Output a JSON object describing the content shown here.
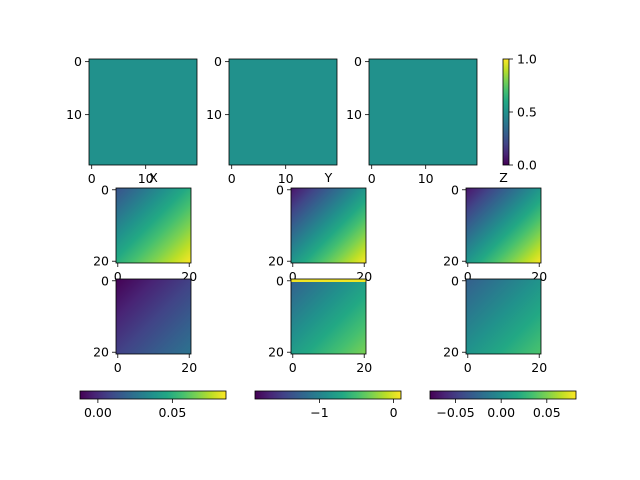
{
  "colors": {
    "viridis": [
      "#440154",
      "#482475",
      "#414487",
      "#355f8d",
      "#2a788e",
      "#21918c",
      "#22a884",
      "#44bf70",
      "#7ad151",
      "#bddf26",
      "#fde725"
    ],
    "uniform_fill": "#21918c"
  },
  "chart_data": [
    {
      "type": "heatmap",
      "panel": "row1-col1",
      "xticks": [
        "0",
        "10"
      ],
      "yticks": [
        "0",
        "10"
      ],
      "xlim": [
        0,
        20
      ],
      "ylim": [
        20,
        0
      ],
      "value": 0.5,
      "colorbar": {
        "ticks": [
          "0.0",
          "0.5",
          "1.0"
        ],
        "range": [
          0,
          1
        ],
        "orientation": "vertical"
      }
    },
    {
      "type": "heatmap",
      "panel": "row1-col2",
      "xticks": [
        "0",
        "10"
      ],
      "yticks": [
        "0",
        "10"
      ],
      "xlim": [
        0,
        20
      ],
      "ylim": [
        20,
        0
      ],
      "value": 0.5
    },
    {
      "type": "heatmap",
      "panel": "row1-col3",
      "xticks": [
        "0",
        "10"
      ],
      "yticks": [
        "0",
        "10"
      ],
      "xlim": [
        0,
        20
      ],
      "ylim": [
        20,
        0
      ],
      "value": 0.5
    },
    {
      "type": "heatmap",
      "panel": "row2-col1",
      "title": "X",
      "xticks": [
        "0",
        "20"
      ],
      "yticks": [
        "0",
        "20"
      ],
      "xlim": [
        0,
        21
      ],
      "ylim": [
        21,
        0
      ],
      "gradient": {
        "max_corner": "top-left",
        "min_corner": "bottom-right",
        "range_frac": [
          0.25,
          1.0
        ]
      }
    },
    {
      "type": "heatmap",
      "panel": "row2-col2",
      "title": "Y",
      "xticks": [
        "0",
        "20"
      ],
      "yticks": [
        "0",
        "20"
      ],
      "xlim": [
        0,
        21
      ],
      "ylim": [
        21,
        0
      ],
      "gradient": {
        "max_corner": "top-left",
        "min_corner": "bottom-right",
        "range_frac": [
          0.05,
          1.0
        ]
      }
    },
    {
      "type": "heatmap",
      "panel": "row2-col3",
      "title": "Z",
      "xticks": [
        "0",
        "20"
      ],
      "yticks": [
        "0",
        "20"
      ],
      "xlim": [
        0,
        21
      ],
      "ylim": [
        21,
        0
      ],
      "gradient": {
        "max_corner": "top-left",
        "min_corner": "bottom-right",
        "range_frac": [
          0.05,
          1.0
        ]
      }
    },
    {
      "type": "heatmap",
      "panel": "row3-col1",
      "xticks": [
        "0",
        "20"
      ],
      "yticks": [
        "0",
        "20"
      ],
      "xlim": [
        0,
        21
      ],
      "ylim": [
        21,
        0
      ],
      "gradient": {
        "max_corner": "top-left",
        "min_corner": "bottom-right",
        "range_frac": [
          0.0,
          0.38
        ]
      },
      "colorbar": {
        "ticks": [
          {
            "label": "0.00",
            "value": 0.0
          },
          {
            "label": "0.05",
            "value": 0.05
          }
        ],
        "range": [
          -0.012,
          0.086
        ],
        "orientation": "horizontal"
      }
    },
    {
      "type": "heatmap",
      "panel": "row3-col2",
      "xticks": [
        "0",
        "20"
      ],
      "yticks": [
        "0",
        "20"
      ],
      "xlim": [
        0,
        21
      ],
      "ylim": [
        21,
        0
      ],
      "gradient": {
        "max_corner": "top-left",
        "min_corner": "bottom-right",
        "range_frac": [
          0.3,
          0.8
        ]
      },
      "top_edge_frac": 0.98,
      "colorbar": {
        "ticks": [
          {
            "label": "−1",
            "value": -1
          },
          {
            "label": "0",
            "value": 0
          }
        ],
        "range": [
          -1.87,
          0.1
        ],
        "orientation": "horizontal"
      }
    },
    {
      "type": "heatmap",
      "panel": "row3-col3",
      "xticks": [
        "0",
        "20"
      ],
      "yticks": [
        "0",
        "20"
      ],
      "xlim": [
        0,
        21
      ],
      "ylim": [
        21,
        0
      ],
      "gradient": {
        "max_corner": "top-left",
        "min_corner": "bottom-right",
        "range_frac": [
          0.3,
          0.72
        ]
      },
      "colorbar": {
        "ticks": [
          {
            "label": "−0.05",
            "value": -0.05
          },
          {
            "label": "0.00",
            "value": 0.0
          },
          {
            "label": "0.05",
            "value": 0.05
          }
        ],
        "range": [
          -0.078,
          0.082
        ],
        "orientation": "horizontal"
      }
    }
  ]
}
